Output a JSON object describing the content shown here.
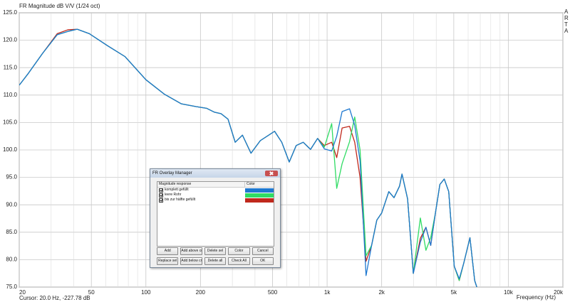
{
  "chart_data": {
    "type": "line",
    "title": "FR Magnitude dB V/V (1/24 oct)",
    "xlabel": "Frequency (Hz)",
    "cursor": "Cursor: 20.0 Hz, -227.78 dB",
    "brand": "ARTA",
    "xscale": "log",
    "xlim": [
      20,
      20000
    ],
    "ylim": [
      75,
      125
    ],
    "xticks": [
      20,
      50,
      100,
      200,
      500,
      {
        "value": 1000,
        "label": "1k"
      },
      {
        "value": 2000,
        "label": "2k"
      },
      {
        "value": 5000,
        "label": "5k"
      },
      {
        "value": 10000,
        "label": "10k"
      },
      {
        "value": 20000,
        "label": "20k"
      }
    ],
    "xminor": [
      30,
      40,
      60,
      70,
      80,
      90,
      300,
      400,
      600,
      700,
      800,
      900,
      3000,
      4000,
      6000,
      7000,
      8000,
      9000
    ],
    "yticks": [
      {
        "value": 75,
        "label": "75.0"
      },
      {
        "value": 80,
        "label": "80.0"
      },
      {
        "value": 85,
        "label": "85.0"
      },
      {
        "value": 90,
        "label": "90.0"
      },
      {
        "value": 95,
        "label": "95.0"
      },
      {
        "value": 100,
        "label": "100.0"
      },
      {
        "value": 105,
        "label": "105.0"
      },
      {
        "value": 110,
        "label": "110.0"
      },
      {
        "value": 115,
        "label": "115.0"
      },
      {
        "value": 120,
        "label": "120.0"
      },
      {
        "value": 125,
        "label": "125.0"
      }
    ],
    "grid": true,
    "x": [
      20,
      22.5,
      26.9,
      32.4,
      37.1,
      41.8,
      48.7,
      61.4,
      76.8,
      100,
      126,
      157,
      189,
      216,
      238,
      260,
      284,
      311,
      341,
      380,
      428,
      513,
      562,
      618,
      675,
      738,
      810,
      886,
      965,
      1060,
      1130,
      1210,
      1330,
      1420,
      1520,
      1640,
      1760,
      1880,
      2000,
      2190,
      2340,
      2510,
      2590,
      2780,
      2990,
      3270,
      3510,
      3730,
      3960,
      4190,
      4430,
      4690,
      5030,
      5360,
      5690,
      6140,
      6520,
      6700
    ],
    "series": [
      {
        "name": "komplett gefüllt",
        "color": "#1e78d0",
        "values": [
          111.8,
          114.0,
          117.6,
          121.0,
          121.6,
          122.0,
          121.2,
          119.0,
          117.0,
          112.8,
          110.2,
          108.4,
          107.9,
          107.6,
          106.9,
          106.6,
          105.6,
          101.4,
          102.7,
          99.4,
          101.7,
          103.4,
          101.4,
          97.8,
          100.8,
          101.4,
          100.1,
          102.1,
          100.2,
          99.8,
          102.5,
          107.0,
          107.5,
          104.5,
          98.0,
          77.1,
          82.6,
          87.2,
          88.5,
          92.4,
          91.3,
          93.4,
          95.6,
          91.1,
          77.5,
          83.2,
          85.9,
          82.6,
          88.5,
          93.7,
          94.7,
          92.4,
          78.8,
          76.5,
          79.5,
          84.0,
          76.2,
          75.0
        ]
      },
      {
        "name": "leere Rohr",
        "color": "#30dc64",
        "values": [
          111.8,
          114.0,
          117.6,
          121.0,
          121.6,
          122.0,
          121.2,
          119.0,
          117.0,
          112.8,
          110.2,
          108.4,
          107.9,
          107.6,
          106.9,
          106.6,
          105.6,
          101.4,
          102.7,
          99.4,
          101.7,
          103.4,
          101.4,
          97.8,
          100.8,
          101.4,
          100.1,
          102.1,
          100.5,
          104.8,
          93.0,
          97.5,
          101.5,
          106.0,
          100.0,
          80.7,
          82.6,
          87.2,
          88.5,
          92.4,
          91.3,
          93.4,
          95.6,
          91.1,
          77.5,
          87.6,
          81.7,
          84.0,
          88.5,
          93.7,
          94.7,
          92.4,
          78.8,
          76.2,
          79.5,
          84.0,
          76.2,
          75.0
        ]
      },
      {
        "name": "bis zur hälfte gefüllt",
        "color": "#c0281c",
        "values": [
          111.8,
          114.0,
          117.6,
          121.2,
          121.9,
          122.0,
          121.2,
          119.0,
          117.0,
          112.8,
          110.2,
          108.4,
          107.9,
          107.6,
          106.9,
          106.6,
          105.6,
          101.4,
          102.7,
          99.4,
          101.7,
          103.4,
          101.4,
          97.8,
          100.8,
          101.4,
          100.1,
          102.1,
          100.8,
          101.4,
          98.6,
          104.0,
          104.3,
          101.4,
          95.0,
          79.7,
          82.6,
          87.2,
          88.5,
          92.4,
          91.3,
          93.4,
          95.6,
          91.1,
          77.5,
          83.9,
          85.9,
          82.6,
          88.5,
          93.7,
          94.7,
          92.4,
          78.8,
          76.2,
          79.5,
          84.0,
          76.2,
          75.0
        ]
      }
    ],
    "legend": {
      "title": "FR Overlay Manager",
      "header": [
        "Magnitude response",
        "Color"
      ],
      "buttons": [
        "Add",
        "Add above crs",
        "Delete sel",
        "Color",
        "Cancel",
        "Replace sel",
        "Add below crs",
        "Delete all",
        "Check All",
        "OK"
      ]
    }
  }
}
